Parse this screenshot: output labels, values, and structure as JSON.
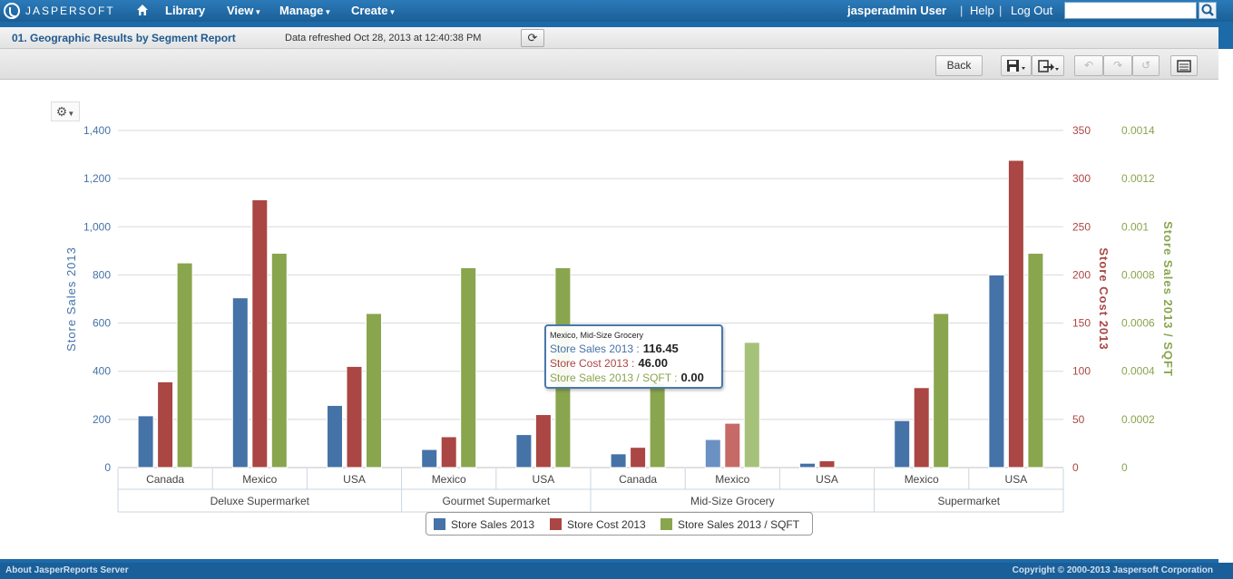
{
  "app": {
    "logo_text": "JASPERSOFT",
    "nav": [
      {
        "label": "Library"
      },
      {
        "label": "View"
      },
      {
        "label": "Manage"
      },
      {
        "label": "Create"
      }
    ],
    "user": "jasperadmin User",
    "help": "Help",
    "logout": "Log Out",
    "search_value": ""
  },
  "report": {
    "title": "01. Geographic Results by Segment Report",
    "refreshed": "Data refreshed Oct 28, 2013 at 12:40:38 PM"
  },
  "toolbar": {
    "back_label": "Back"
  },
  "colors": {
    "store_sales": "#4572a7",
    "store_cost": "#aa4643",
    "sales_per_sqft": "#89a54e"
  },
  "chart_data": {
    "type": "bar",
    "title": "",
    "categories": [
      {
        "group": "Deluxe Supermarket",
        "country": "Canada"
      },
      {
        "group": "Deluxe Supermarket",
        "country": "Mexico"
      },
      {
        "group": "Deluxe Supermarket",
        "country": "USA"
      },
      {
        "group": "Gourmet Supermarket",
        "country": "Mexico"
      },
      {
        "group": "Gourmet Supermarket",
        "country": "USA"
      },
      {
        "group": "Mid-Size Grocery",
        "country": "Canada"
      },
      {
        "group": "Mid-Size Grocery",
        "country": "Mexico"
      },
      {
        "group": "Mid-Size Grocery",
        "country": "USA"
      },
      {
        "group": "Supermarket",
        "country": "Mexico"
      },
      {
        "group": "Supermarket",
        "country": "USA"
      }
    ],
    "groups": [
      "Deluxe Supermarket",
      "Gourmet Supermarket",
      "Mid-Size Grocery",
      "Supermarket"
    ],
    "series": [
      {
        "name": "Store Sales 2013",
        "axis": "left",
        "values": [
          215,
          705,
          258,
          75,
          137,
          57,
          116.45,
          18,
          195,
          800
        ]
      },
      {
        "name": "Store Cost 2013",
        "axis": "right1",
        "values": [
          89,
          278,
          105,
          32,
          55,
          21,
          46.0,
          7,
          83,
          319
        ]
      },
      {
        "name": "Store Sales 2013 / SQFT",
        "axis": "right2",
        "values": [
          0.00085,
          0.00089,
          0.00064,
          0.00083,
          0.00083,
          0.00035,
          0.00052,
          0,
          0.00064,
          0.00089
        ]
      }
    ],
    "axes": {
      "left": {
        "label": "Store Sales 2013",
        "ylim": [
          0,
          1400
        ],
        "ticks": [
          "0",
          "200",
          "400",
          "600",
          "800",
          "1,000",
          "1,200",
          "1,400"
        ]
      },
      "right1": {
        "label": "Store Cost 2013",
        "ylim": [
          0,
          350
        ],
        "ticks": [
          "0",
          "50",
          "100",
          "150",
          "200",
          "250",
          "300",
          "350"
        ]
      },
      "right2": {
        "label": "Store Sales 2013 / SQFT",
        "ylim": [
          0,
          0.0014
        ],
        "ticks": [
          "0",
          "0.0002",
          "0.0004",
          "0.0006",
          "0.0008",
          "0.001",
          "0.0012",
          "0.0014"
        ]
      }
    },
    "grid": true,
    "legend": "bottom-center",
    "tooltip": {
      "header": "Mexico, Mid-Size Grocery",
      "rows": [
        {
          "label": "Store Sales 2013 :",
          "value": "116.45"
        },
        {
          "label": "Store Cost 2013 :",
          "value": "46.00"
        },
        {
          "label": "Store Sales 2013 / SQFT :",
          "value": "0.00"
        }
      ]
    }
  },
  "footer": {
    "left": "About JasperReports Server",
    "right": "Copyright © 2000-2013 Jaspersoft Corporation"
  }
}
